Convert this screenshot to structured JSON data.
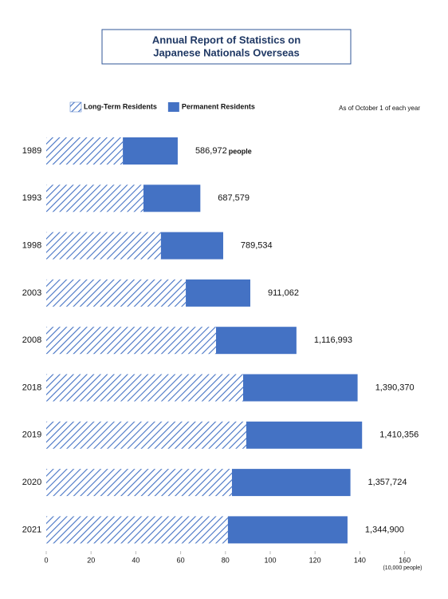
{
  "chart_data": {
    "type": "stacked-barh",
    "title": "Annual Report of Statistics on",
    "subtitle": "Japanese Nationals Overseas",
    "note": "As of October 1 of each year",
    "categories": [
      "1989",
      "1993",
      "1998",
      "2003",
      "2008",
      "2018",
      "2019",
      "2020",
      "2021"
    ],
    "series": [
      {
        "name": "Long-Term Residents",
        "color": "#4472c4",
        "hatch": true,
        "values": [
          34.2,
          43.4,
          51.2,
          62.3,
          75.8,
          87.9,
          89.3,
          82.9,
          81.1
        ]
      },
      {
        "name": "Permanent Residents",
        "color": "#4472c4",
        "hatch": false,
        "values": [
          24.5,
          25.4,
          27.8,
          28.8,
          35.9,
          51.1,
          51.7,
          52.9,
          53.4
        ]
      }
    ],
    "totals": {
      "values": [
        58.6972,
        68.7579,
        78.9534,
        91.1062,
        111.6993,
        139.037,
        141.0356,
        135.7724,
        134.49
      ],
      "value_labels": [
        "586,972",
        "687,579",
        "789,534",
        "911,062",
        "1,116,993",
        "1,390,370",
        "1,410,356",
        "1,357,724",
        "1,344,900"
      ],
      "first_unit": "people"
    },
    "xlim": [
      0,
      160
    ],
    "xticks": [
      0,
      20,
      40,
      60,
      80,
      100,
      120,
      140,
      160
    ],
    "x_unit": "(10,000 people)"
  }
}
